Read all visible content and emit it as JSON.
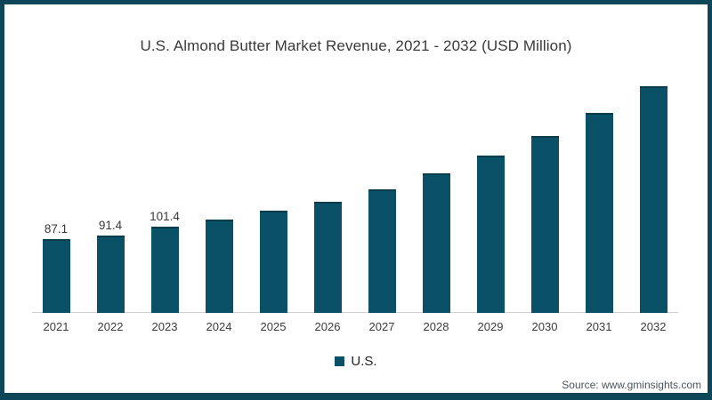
{
  "chart_data": {
    "type": "bar",
    "title": "U.S. Almond Butter Market Revenue, 2021 - 2032 (USD Million)",
    "categories": [
      "2021",
      "2022",
      "2023",
      "2024",
      "2025",
      "2026",
      "2027",
      "2028",
      "2029",
      "2030",
      "2031",
      "2032"
    ],
    "series": [
      {
        "name": "U.S.",
        "values": [
          87.1,
          91.4,
          101.4,
          110.1,
          120.2,
          130.6,
          145.6,
          163.8,
          185.0,
          208.3,
          235.2,
          266.5
        ]
      }
    ],
    "value_labels_shown": [
      "87.1",
      "91.4",
      "101.4",
      "",
      "",
      "",
      "",
      "",
      "",
      "",
      "",
      ""
    ],
    "legend": [
      "U.S."
    ],
    "legend_position": "bottom",
    "xlabel": "",
    "ylabel": "",
    "ylim": [
      0,
      280
    ],
    "grid": false,
    "y_axis_visible": false
  },
  "source_text": "Source: www.gminsights.com",
  "colors": {
    "bar": "#0a5168",
    "bar_top_edge": "#093c4d",
    "frame_border": "#0d4659",
    "axis_line": "#d0d0d0",
    "title_text": "#3a3a3a",
    "tick_text": "#3b3b3b",
    "source_text": "#4c555c",
    "background": "#ffffff"
  }
}
